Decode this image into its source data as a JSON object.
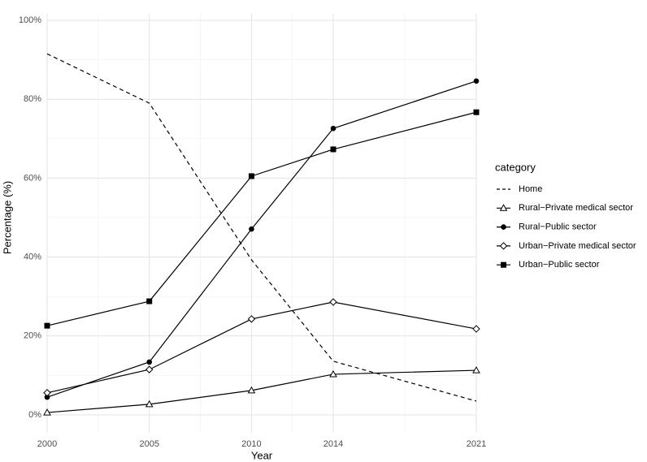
{
  "chart_data": {
    "type": "line",
    "x_label": "Year",
    "y_label": "Percentage (%)",
    "legend_title": "category",
    "x": [
      2000,
      2005,
      2010,
      2014,
      2021
    ],
    "xlim": [
      2000,
      2021
    ],
    "xticks": [
      2000,
      2005,
      2010,
      2014,
      2021
    ],
    "ylim": [
      0,
      100
    ],
    "yticks": [
      {
        "value": 0,
        "label": "0%"
      },
      {
        "value": 20,
        "label": "20%"
      },
      {
        "value": 40,
        "label": "40%"
      },
      {
        "value": 60,
        "label": "60%"
      },
      {
        "value": 80,
        "label": "80%"
      },
      {
        "value": 100,
        "label": "100%"
      }
    ],
    "grid": true,
    "legend": "right",
    "series": [
      {
        "name": "Home",
        "color": "#000000",
        "dash": "dashed",
        "marker": "none",
        "values": [
          91.5,
          79,
          39.3,
          13.6,
          3.5
        ]
      },
      {
        "name": "Rural−Private medical sector",
        "color": "#000000",
        "dash": "solid",
        "marker": "triangle",
        "values": [
          0.6,
          2.7,
          6.2,
          10.3,
          11.3
        ]
      },
      {
        "name": "Rural−Public sector",
        "color": "#000000",
        "dash": "solid",
        "marker": "circle",
        "values": [
          4.5,
          13.4,
          47.1,
          72.6,
          84.6
        ]
      },
      {
        "name": "Urban−Private medical sector",
        "color": "#000000",
        "dash": "solid",
        "marker": "diamond",
        "values": [
          5.6,
          11.5,
          24.3,
          28.6,
          21.8
        ]
      },
      {
        "name": "Urban−Public sector",
        "color": "#000000",
        "dash": "solid",
        "marker": "square",
        "values": [
          22.6,
          28.8,
          60.5,
          67.3,
          76.7
        ]
      }
    ]
  }
}
